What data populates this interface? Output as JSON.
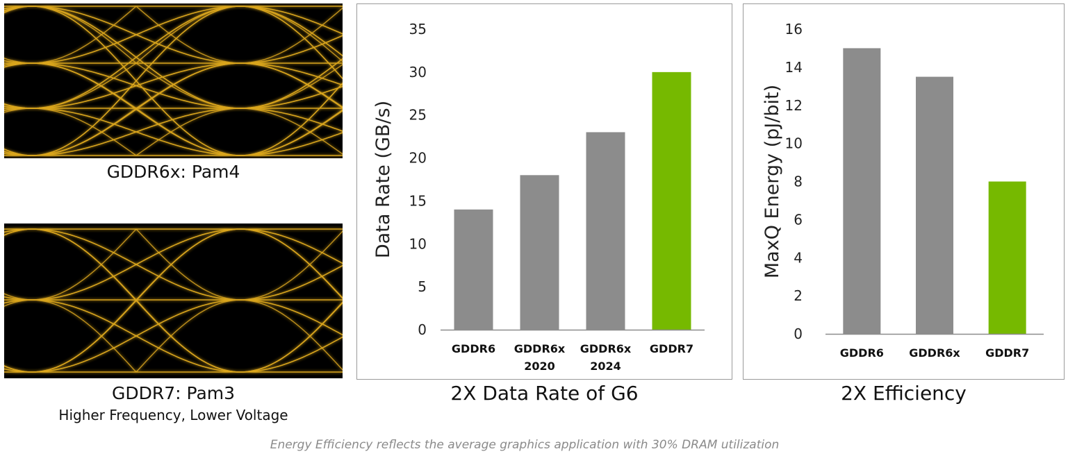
{
  "eye_diagrams": [
    {
      "caption": "GDDR6x: Pam4",
      "subcaption": ""
    },
    {
      "caption": "GDDR7: Pam3",
      "subcaption": "Higher Frequency, Lower Voltage"
    }
  ],
  "footnote": "Energy Efficiency reflects the average graphics application with 30% DRAM utilization",
  "colors": {
    "eye_background": "#000000",
    "eye_trace": "#d9a51c",
    "bar_gray": "#8c8c8c",
    "bar_green": "#76b900",
    "axis": "#8c8c8c"
  },
  "chart_data": [
    {
      "type": "bar",
      "title": "2X Data Rate of G6",
      "xlabel": "",
      "ylabel": "Data Rate (GB/s)",
      "categories": [
        [
          "GDDR6"
        ],
        [
          "GDDR6x",
          "2020"
        ],
        [
          "GDDR6x",
          "2024"
        ],
        [
          "GDDR7"
        ]
      ],
      "values": [
        14,
        18,
        23,
        30
      ],
      "bar_colors": [
        "#8c8c8c",
        "#8c8c8c",
        "#8c8c8c",
        "#76b900"
      ],
      "ylim": [
        0,
        35
      ],
      "yticks": [
        0,
        5,
        10,
        15,
        20,
        25,
        30,
        35
      ],
      "grid": false,
      "legend": "none"
    },
    {
      "type": "bar",
      "title": "2X Efficiency",
      "xlabel": "",
      "ylabel": "MaxQ Energy (pJ/bit)",
      "categories": [
        [
          "GDDR6"
        ],
        [
          "GDDR6x"
        ],
        [
          "GDDR7"
        ]
      ],
      "values": [
        15,
        13.5,
        8
      ],
      "bar_colors": [
        "#8c8c8c",
        "#8c8c8c",
        "#76b900"
      ],
      "ylim": [
        0,
        16
      ],
      "yticks": [
        0,
        2,
        4,
        6,
        8,
        10,
        12,
        14,
        16
      ],
      "grid": false,
      "legend": "none"
    }
  ]
}
